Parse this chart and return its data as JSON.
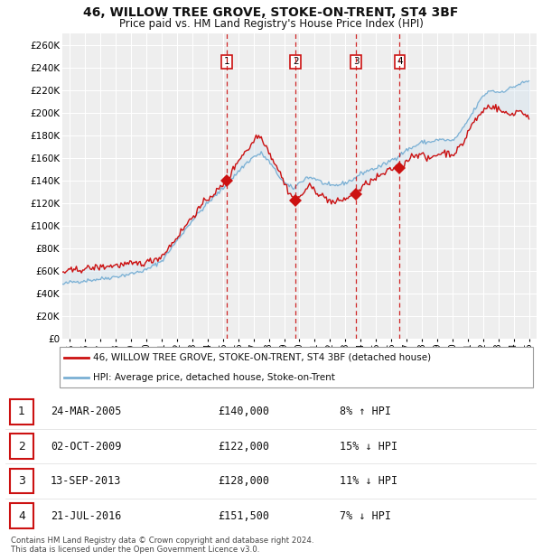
{
  "title": "46, WILLOW TREE GROVE, STOKE-ON-TRENT, ST4 3BF",
  "subtitle": "Price paid vs. HM Land Registry's House Price Index (HPI)",
  "yticks": [
    0,
    20000,
    40000,
    60000,
    80000,
    100000,
    120000,
    140000,
    160000,
    180000,
    200000,
    220000,
    240000,
    260000
  ],
  "ylim": [
    0,
    270000
  ],
  "xlim_start": 1994.5,
  "xlim_end": 2025.5,
  "background_color": "#ffffff",
  "plot_bg_color": "#eeeeee",
  "grid_color": "#ffffff",
  "hpi_line_color": "#7ab0d4",
  "price_line_color": "#cc1111",
  "sale_marker_color": "#cc1111",
  "shade_color": "#cce0f0",
  "dashed_line_color": "#cc1111",
  "transactions": [
    {
      "id": 1,
      "date_str": "24-MAR-2005",
      "year": 2005.23,
      "price": 140000,
      "pct": "8%",
      "dir": "↑"
    },
    {
      "id": 2,
      "date_str": "02-OCT-2009",
      "year": 2009.75,
      "price": 122000,
      "pct": "15%",
      "dir": "↓"
    },
    {
      "id": 3,
      "date_str": "13-SEP-2013",
      "year": 2013.7,
      "price": 128000,
      "pct": "11%",
      "dir": "↓"
    },
    {
      "id": 4,
      "date_str": "21-JUL-2016",
      "year": 2016.55,
      "price": 151500,
      "pct": "7%",
      "dir": "↓"
    }
  ],
  "legend_label_price": "46, WILLOW TREE GROVE, STOKE-ON-TRENT, ST4 3BF (detached house)",
  "legend_label_hpi": "HPI: Average price, detached house, Stoke-on-Trent",
  "footer": "Contains HM Land Registry data © Crown copyright and database right 2024.\nThis data is licensed under the Open Government Licence v3.0.",
  "xticks": [
    1995,
    1996,
    1997,
    1998,
    1999,
    2000,
    2001,
    2002,
    2003,
    2004,
    2005,
    2006,
    2007,
    2008,
    2009,
    2010,
    2011,
    2012,
    2013,
    2014,
    2015,
    2016,
    2017,
    2018,
    2019,
    2020,
    2021,
    2022,
    2023,
    2024,
    2025
  ],
  "hpi_anchors": [
    [
      1994.5,
      48000
    ],
    [
      1995.0,
      50000
    ],
    [
      1996.0,
      51500
    ],
    [
      1997.0,
      53000
    ],
    [
      1998.0,
      55000
    ],
    [
      1999.0,
      57500
    ],
    [
      2000.0,
      61000
    ],
    [
      2001.0,
      69000
    ],
    [
      2002.0,
      87000
    ],
    [
      2003.0,
      105000
    ],
    [
      2004.0,
      120000
    ],
    [
      2005.0,
      133000
    ],
    [
      2005.5,
      140000
    ],
    [
      2006.0,
      148000
    ],
    [
      2006.5,
      155000
    ],
    [
      2007.0,
      161000
    ],
    [
      2007.5,
      164000
    ],
    [
      2008.0,
      157000
    ],
    [
      2008.5,
      147000
    ],
    [
      2009.0,
      138000
    ],
    [
      2009.3,
      135000
    ],
    [
      2009.6,
      133000
    ],
    [
      2010.0,
      138000
    ],
    [
      2010.5,
      143000
    ],
    [
      2011.0,
      142000
    ],
    [
      2011.5,
      138000
    ],
    [
      2012.0,
      135000
    ],
    [
      2012.5,
      136000
    ],
    [
      2013.0,
      138000
    ],
    [
      2013.5,
      141000
    ],
    [
      2014.0,
      146000
    ],
    [
      2014.5,
      149000
    ],
    [
      2015.0,
      151000
    ],
    [
      2015.5,
      154000
    ],
    [
      2016.0,
      158000
    ],
    [
      2016.5,
      162000
    ],
    [
      2017.0,
      167000
    ],
    [
      2017.5,
      170000
    ],
    [
      2018.0,
      174000
    ],
    [
      2018.5,
      174000
    ],
    [
      2019.0,
      176000
    ],
    [
      2019.5,
      176000
    ],
    [
      2020.0,
      175000
    ],
    [
      2020.5,
      182000
    ],
    [
      2021.0,
      193000
    ],
    [
      2021.5,
      204000
    ],
    [
      2022.0,
      215000
    ],
    [
      2022.5,
      220000
    ],
    [
      2023.0,
      218000
    ],
    [
      2023.5,
      220000
    ],
    [
      2024.0,
      223000
    ],
    [
      2024.5,
      226000
    ],
    [
      2025.0,
      228000
    ]
  ],
  "price_anchors": [
    [
      1994.5,
      59000
    ],
    [
      1995.0,
      60000
    ],
    [
      1996.0,
      62000
    ],
    [
      1997.0,
      63500
    ],
    [
      1998.0,
      65000
    ],
    [
      1999.0,
      66000
    ],
    [
      2000.0,
      67500
    ],
    [
      2001.0,
      73000
    ],
    [
      2002.0,
      90000
    ],
    [
      2003.0,
      108000
    ],
    [
      2004.0,
      124000
    ],
    [
      2004.8,
      133000
    ],
    [
      2005.0,
      136000
    ],
    [
      2005.3,
      140000
    ],
    [
      2005.6,
      148000
    ],
    [
      2006.0,
      158000
    ],
    [
      2006.4,
      165000
    ],
    [
      2006.8,
      170000
    ],
    [
      2007.0,
      175000
    ],
    [
      2007.2,
      180000
    ],
    [
      2007.5,
      178000
    ],
    [
      2007.8,
      172000
    ],
    [
      2008.0,
      165000
    ],
    [
      2008.3,
      158000
    ],
    [
      2008.7,
      148000
    ],
    [
      2009.0,
      138000
    ],
    [
      2009.4,
      128000
    ],
    [
      2009.75,
      122000
    ],
    [
      2010.0,
      125000
    ],
    [
      2010.3,
      130000
    ],
    [
      2010.6,
      135000
    ],
    [
      2011.0,
      132000
    ],
    [
      2011.4,
      127000
    ],
    [
      2011.8,
      124000
    ],
    [
      2012.0,
      122000
    ],
    [
      2012.3,
      120000
    ],
    [
      2012.6,
      122000
    ],
    [
      2013.0,
      124000
    ],
    [
      2013.4,
      126000
    ],
    [
      2013.7,
      128000
    ],
    [
      2014.0,
      132000
    ],
    [
      2014.4,
      138000
    ],
    [
      2014.8,
      140000
    ],
    [
      2015.0,
      142000
    ],
    [
      2015.4,
      145000
    ],
    [
      2015.8,
      148000
    ],
    [
      2016.0,
      150000
    ],
    [
      2016.3,
      152000
    ],
    [
      2016.55,
      151500
    ],
    [
      2016.8,
      153000
    ],
    [
      2017.0,
      158000
    ],
    [
      2017.4,
      162000
    ],
    [
      2017.8,
      164000
    ],
    [
      2018.0,
      163000
    ],
    [
      2018.4,
      158000
    ],
    [
      2018.8,
      162000
    ],
    [
      2019.0,
      163000
    ],
    [
      2019.4,
      165000
    ],
    [
      2019.8,
      164000
    ],
    [
      2020.0,
      163000
    ],
    [
      2020.4,
      168000
    ],
    [
      2020.8,
      175000
    ],
    [
      2021.0,
      183000
    ],
    [
      2021.4,
      192000
    ],
    [
      2021.8,
      198000
    ],
    [
      2022.0,
      202000
    ],
    [
      2022.4,
      206000
    ],
    [
      2022.8,
      205000
    ],
    [
      2023.0,
      203000
    ],
    [
      2023.4,
      200000
    ],
    [
      2023.8,
      198000
    ],
    [
      2024.0,
      200000
    ],
    [
      2024.4,
      202000
    ],
    [
      2024.8,
      198000
    ],
    [
      2025.0,
      197000
    ]
  ]
}
